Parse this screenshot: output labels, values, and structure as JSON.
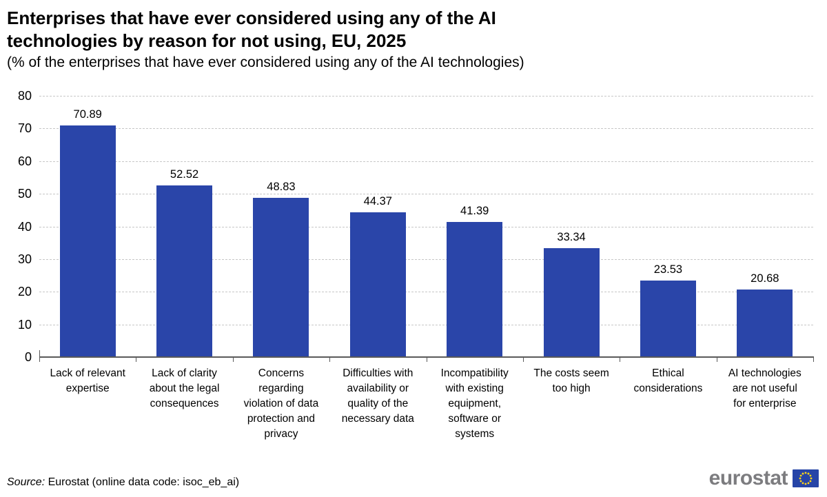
{
  "header": {
    "title": "Enterprises that have ever considered using any of the AI technologies by reason for not using, EU, 2025",
    "subtitle": "(% of the enterprises that have ever considered using any of the AI technologies)"
  },
  "chart_data": {
    "type": "bar",
    "categories": [
      "Lack of relevant expertise",
      "Lack of clarity about the legal consequences",
      "Concerns regarding violation of data protection and privacy",
      "Difficulties with availability or quality of the necessary data",
      "Incompatibility with existing equipment, software or systems",
      "The costs seem too high",
      "Ethical considerations",
      "AI technologies are not useful for enterprise"
    ],
    "values": [
      70.89,
      52.52,
      48.83,
      44.37,
      41.39,
      33.34,
      23.53,
      20.68
    ],
    "value_label_decimals": 2,
    "title": "Enterprises that have ever considered using any of the AI technologies by reason for not using, EU, 2025",
    "xlabel": "",
    "ylabel": "% of the enterprises that have ever considered using any of the AI technologies",
    "ylim": [
      0,
      80
    ],
    "yticks": [
      0,
      10,
      20,
      30,
      40,
      50,
      60,
      70,
      80
    ],
    "grid": "horizontal-dashed",
    "legend": "none",
    "bar_color": "#2A45A9"
  },
  "footer": {
    "source_label": "Source:",
    "source_text": "Eurostat (online data code: isoc_eb_ai)",
    "logo_text": "eurostat"
  },
  "colors": {
    "bar": "#2A45A9",
    "grid": "#c6c6c6",
    "axis": "#595959",
    "logo_gray": "#7c7c7f",
    "flag_blue": "#2644A7",
    "flag_stars": "#FFD617"
  }
}
